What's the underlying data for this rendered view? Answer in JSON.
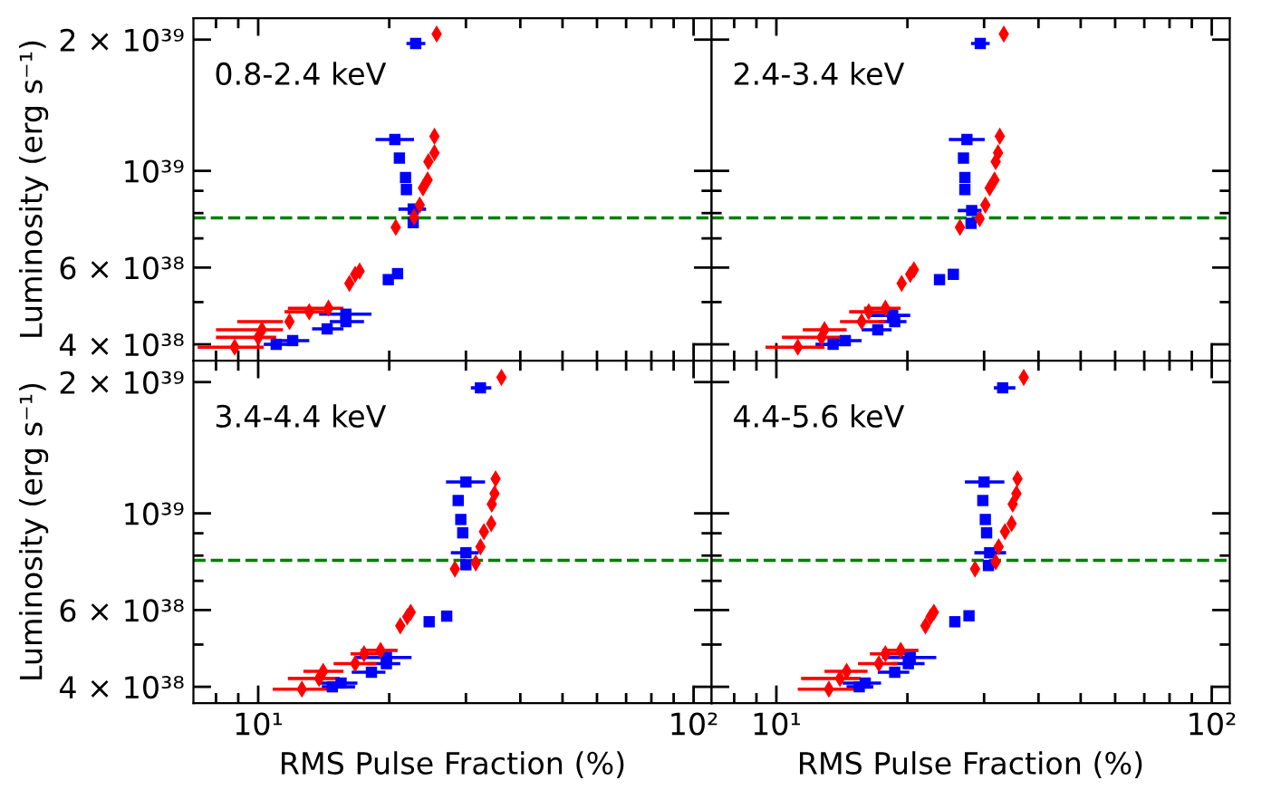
{
  "chart_data": [
    {
      "type": "scatter",
      "ylabel": "Luminosity (erg s⁻¹)",
      "annotations": [
        "0.8-2.4 keV"
      ],
      "log": "xy",
      "tick_labels": "y",
      "xlim": [
        7.1,
        110
      ],
      "ylim": [
        3.67e+38,
        2.24e+39
      ],
      "xticks": [
        {
          "value": 8,
          "label": null
        },
        {
          "value": 9,
          "label": null
        },
        {
          "value": 10,
          "label": null
        },
        {
          "value": 20,
          "label": null
        },
        {
          "value": 30,
          "label": null
        },
        {
          "value": 40,
          "label": null
        },
        {
          "value": 50,
          "label": null
        },
        {
          "value": 60,
          "label": null
        },
        {
          "value": 70,
          "label": null
        },
        {
          "value": 80,
          "label": null
        },
        {
          "value": 90,
          "label": null
        },
        {
          "value": 100,
          "label": null
        }
      ],
      "yticks": [
        {
          "value": 4e+38,
          "label": "4 × 10³⁸"
        },
        {
          "value": 5e+38,
          "label": null
        },
        {
          "value": 6e+38,
          "label": "6 × 10³⁸"
        },
        {
          "value": 7e+38,
          "label": null
        },
        {
          "value": 8e+38,
          "label": null
        },
        {
          "value": 9e+38,
          "label": null
        },
        {
          "value": 1e+39,
          "label": "10³⁹"
        },
        {
          "value": 2e+39,
          "label": "2 × 10³⁹"
        }
      ],
      "ref_lines": [
        {
          "axis": "y",
          "value": 7.8e+38,
          "color": "#008000",
          "line_style": "dashed"
        }
      ],
      "series": [
        {
          "color": "#0000ff",
          "marker": "square",
          "x": [
            23.0,
            20.6,
            21.1,
            21.8,
            21.9,
            22.7,
            22.7,
            20.9,
            19.9,
            15.9,
            15.9,
            14.4,
            12.0,
            11.0
          ],
          "values": [
            1.96e+39,
            1.18e+39,
            1.07e+39,
            9.65e+38,
            9.06e+38,
            8.17e+38,
            7.61e+38,
            5.81e+38,
            5.63e+38,
            4.69e+38,
            4.51e+38,
            4.34e+38,
            4.08e+38,
            4e+38
          ],
          "xerrors": [
            [
              21.9,
              24.2
            ],
            [
              18.6,
              22.8
            ],
            null,
            null,
            null,
            [
              21.0,
              24.3
            ],
            null,
            null,
            null,
            [
              13.8,
              18.2
            ],
            [
              14.6,
              17.5
            ],
            [
              13.3,
              15.7
            ],
            [
              11.2,
              13.1
            ],
            [
              10.3,
              11.9
            ]
          ]
        },
        {
          "color": "#ff0000",
          "marker": "diamond",
          "x": [
            25.7,
            25.4,
            25.4,
            24.6,
            24.5,
            23.9,
            23.5,
            22.8,
            20.7,
            17.1,
            16.7,
            16.2,
            14.5,
            13.1,
            11.8,
            10.2,
            10.0,
            8.83
          ],
          "values": [
            2.06e+39,
            1.2e+39,
            1.1e+39,
            1.05e+39,
            9.53e+38,
            9.14e+38,
            8.35e+38,
            7.84e+38,
            7.42e+38,
            5.89e+38,
            5.79e+38,
            5.52e+38,
            4.84e+38,
            4.75e+38,
            4.51e+38,
            4.32e+38,
            4.15e+38,
            3.94e+38
          ],
          "xerrors": [
            null,
            null,
            null,
            null,
            null,
            null,
            null,
            null,
            null,
            null,
            null,
            null,
            [
              11.7,
              15.7
            ],
            [
              11.5,
              14.5
            ],
            [
              8.95,
              11.4
            ],
            [
              8.0,
              11.4
            ],
            [
              8.0,
              11.0
            ],
            [
              7.26,
              10.3
            ]
          ]
        }
      ]
    },
    {
      "type": "scatter",
      "annotations": [
        "2.4-3.4 keV"
      ],
      "log": "xy",
      "tick_labels": false,
      "xlim": [
        7.1,
        110
      ],
      "ylim": [
        3.67e+38,
        2.24e+39
      ],
      "xticks": [
        {
          "value": 8,
          "label": null
        },
        {
          "value": 9,
          "label": null
        },
        {
          "value": 10,
          "label": null
        },
        {
          "value": 20,
          "label": null
        },
        {
          "value": 30,
          "label": null
        },
        {
          "value": 40,
          "label": null
        },
        {
          "value": 50,
          "label": null
        },
        {
          "value": 60,
          "label": null
        },
        {
          "value": 70,
          "label": null
        },
        {
          "value": 80,
          "label": null
        },
        {
          "value": 90,
          "label": null
        },
        {
          "value": 100,
          "label": null
        }
      ],
      "yticks": [
        {
          "value": 4e+38,
          "label": null
        },
        {
          "value": 5e+38,
          "label": null
        },
        {
          "value": 6e+38,
          "label": null
        },
        {
          "value": 7e+38,
          "label": null
        },
        {
          "value": 8e+38,
          "label": null
        },
        {
          "value": 9e+38,
          "label": null
        },
        {
          "value": 1e+39,
          "label": null
        },
        {
          "value": 2e+39,
          "label": null
        }
      ],
      "ref_lines": [
        {
          "axis": "y",
          "value": 7.8e+38,
          "color": "#008000",
          "line_style": "dashed"
        }
      ],
      "series": [
        {
          "color": "#0000ff",
          "marker": "square",
          "x": [
            29.4,
            27.4,
            26.9,
            27.1,
            27.1,
            28.1,
            28.0,
            25.5,
            23.7,
            18.5,
            18.7,
            17.1,
            14.4,
            13.5
          ],
          "values": [
            1.96e+39,
            1.18e+39,
            1.07e+39,
            9.65e+38,
            9.06e+38,
            8.11e+38,
            7.58e+38,
            5.79e+38,
            5.63e+38,
            4.66e+38,
            4.51e+38,
            4.32e+38,
            4.08e+38,
            4e+38
          ],
          "xerrors": [
            [
              28.0,
              30.9
            ],
            [
              24.9,
              30.1
            ],
            null,
            null,
            null,
            [
              26.1,
              29.6
            ],
            null,
            null,
            null,
            [
              16.2,
              20.3
            ],
            [
              17.2,
              19.9
            ],
            [
              15.7,
              18.4
            ],
            [
              13.3,
              15.7
            ],
            [
              12.3,
              14.5
            ]
          ]
        },
        {
          "color": "#ff0000",
          "marker": "diamond",
          "x": [
            33.3,
            32.6,
            32.3,
            31.9,
            31.7,
            30.9,
            30.2,
            29.3,
            26.4,
            20.7,
            20.3,
            19.4,
            17.8,
            16.3,
            15.7,
            12.9,
            12.7,
            11.2
          ],
          "values": [
            2.06e+39,
            1.2e+39,
            1.1e+39,
            1.05e+39,
            9.53e+38,
            9.14e+38,
            8.35e+38,
            7.77e+38,
            7.42e+38,
            5.93e+38,
            5.79e+38,
            5.52e+38,
            4.84e+38,
            4.75e+38,
            4.51e+38,
            4.32e+38,
            4.15e+38,
            3.94e+38
          ],
          "xerrors": [
            null,
            null,
            null,
            null,
            null,
            null,
            null,
            null,
            null,
            null,
            null,
            null,
            [
              15.9,
              19.3
            ],
            [
              14.7,
              17.8
            ],
            [
              14.0,
              17.8
            ],
            [
              11.5,
              14.5
            ],
            [
              10.3,
              14.5
            ],
            [
              9.44,
              12.9
            ]
          ]
        }
      ]
    },
    {
      "type": "scatter",
      "xlabel": "RMS Pulse Fraction (%)",
      "ylabel": "Luminosity (erg s⁻¹)",
      "annotations": [
        "3.4-4.4 keV"
      ],
      "log": "xy",
      "xlim": [
        7.1,
        110
      ],
      "ylim": [
        3.67e+38,
        2.24e+39
      ],
      "xticks": [
        {
          "value": 8,
          "label": null
        },
        {
          "value": 9,
          "label": null
        },
        {
          "value": 10,
          "label": "10¹"
        },
        {
          "value": 20,
          "label": null
        },
        {
          "value": 30,
          "label": null
        },
        {
          "value": 40,
          "label": null
        },
        {
          "value": 50,
          "label": null
        },
        {
          "value": 60,
          "label": null
        },
        {
          "value": 70,
          "label": null
        },
        {
          "value": 80,
          "label": null
        },
        {
          "value": 90,
          "label": null
        },
        {
          "value": 100,
          "label": "10²"
        }
      ],
      "yticks": [
        {
          "value": 4e+38,
          "label": "4 × 10³⁸"
        },
        {
          "value": 5e+38,
          "label": null
        },
        {
          "value": 6e+38,
          "label": "6 × 10³⁸"
        },
        {
          "value": 7e+38,
          "label": null
        },
        {
          "value": 8e+38,
          "label": null
        },
        {
          "value": 9e+38,
          "label": null
        },
        {
          "value": 1e+39,
          "label": "10³⁹"
        },
        {
          "value": 2e+39,
          "label": "2 × 10³⁹"
        }
      ],
      "ref_lines": [
        {
          "axis": "y",
          "value": 7.8e+38,
          "color": "#008000",
          "line_style": "dashed"
        }
      ],
      "series": [
        {
          "color": "#0000ff",
          "marker": "square",
          "x": [
            32.4,
            30.0,
            28.8,
            29.2,
            29.5,
            30.0,
            30.0,
            27.1,
            24.7,
            19.7,
            19.7,
            18.2,
            15.5,
            14.8
          ],
          "values": [
            1.94e+39,
            1.18e+39,
            1.07e+39,
            9.68e+38,
            9.02e+38,
            8.12e+38,
            7.62e+38,
            5.81e+38,
            5.64e+38,
            4.67e+38,
            4.52e+38,
            4.32e+38,
            4.08e+38,
            4e+38
          ],
          "xerrors": [
            [
              30.8,
              34.3
            ],
            [
              27.0,
              33.2
            ],
            null,
            null,
            null,
            [
              27.7,
              32.1
            ],
            null,
            null,
            null,
            [
              16.7,
              22.5
            ],
            [
              17.8,
              21.2
            ],
            [
              16.4,
              19.6
            ],
            [
              13.8,
              16.9
            ],
            [
              14.0,
              16.7
            ]
          ]
        },
        {
          "color": "#ff0000",
          "marker": "diamond",
          "x": [
            36.2,
            35.1,
            34.9,
            34.4,
            34.3,
            33.0,
            32.4,
            31.6,
            28.3,
            22.4,
            22.0,
            21.2,
            19.1,
            17.5,
            16.7,
            14.1,
            13.8,
            12.6
          ],
          "values": [
            2.05e+39,
            1.2e+39,
            1.11e+39,
            1.05e+39,
            9.47e+38,
            9.08e+38,
            8.38e+38,
            7.69e+38,
            7.45e+38,
            5.93e+38,
            5.79e+38,
            5.52e+38,
            4.85e+38,
            4.76e+38,
            4.52e+38,
            4.34e+38,
            4.18e+38,
            3.95e+38
          ],
          "xerrors": [
            null,
            null,
            null,
            null,
            null,
            null,
            null,
            null,
            null,
            null,
            null,
            null,
            [
              17.2,
              20.9
            ],
            [
              16.3,
              19.6
            ],
            [
              14.9,
              18.7
            ],
            [
              12.7,
              15.7
            ],
            [
              11.7,
              15.4
            ],
            [
              10.8,
              14.7
            ]
          ]
        }
      ]
    },
    {
      "type": "scatter",
      "xlabel": "RMS Pulse Fraction (%)",
      "annotations": [
        "4.4-5.6 keV"
      ],
      "log": "xy",
      "tick_labels": "x",
      "xlim": [
        7.1,
        110
      ],
      "ylim": [
        3.67e+38,
        2.24e+39
      ],
      "xticks": [
        {
          "value": 8,
          "label": null
        },
        {
          "value": 9,
          "label": null
        },
        {
          "value": 10,
          "label": "10¹"
        },
        {
          "value": 20,
          "label": null
        },
        {
          "value": 30,
          "label": null
        },
        {
          "value": 40,
          "label": null
        },
        {
          "value": 50,
          "label": null
        },
        {
          "value": 60,
          "label": null
        },
        {
          "value": 70,
          "label": null
        },
        {
          "value": 80,
          "label": null
        },
        {
          "value": 90,
          "label": null
        },
        {
          "value": 100,
          "label": "10²"
        }
      ],
      "yticks": [
        {
          "value": 4e+38,
          "label": null
        },
        {
          "value": 5e+38,
          "label": null
        },
        {
          "value": 6e+38,
          "label": null
        },
        {
          "value": 7e+38,
          "label": null
        },
        {
          "value": 8e+38,
          "label": null
        },
        {
          "value": 9e+38,
          "label": null
        },
        {
          "value": 1e+39,
          "label": null
        },
        {
          "value": 2e+39,
          "label": null
        }
      ],
      "ref_lines": [
        {
          "axis": "y",
          "value": 7.8e+38,
          "color": "#008000",
          "line_style": "dashed"
        }
      ],
      "series": [
        {
          "color": "#0000ff",
          "marker": "square",
          "x": [
            33.1,
            30.0,
            29.8,
            30.2,
            30.4,
            30.9,
            30.7,
            27.7,
            25.7,
            20.3,
            20.1,
            18.7,
            16.0,
            15.5
          ],
          "values": [
            1.94e+39,
            1.18e+39,
            1.07e+39,
            9.68e+38,
            9.02e+38,
            8.12e+38,
            7.59e+38,
            5.82e+38,
            5.64e+38,
            4.67e+38,
            4.52e+38,
            4.32e+38,
            4.08e+38,
            4e+38
          ],
          "xerrors": [
            [
              31.6,
              35.4
            ],
            [
              27.1,
              33.4
            ],
            null,
            null,
            null,
            [
              28.5,
              33.7
            ],
            null,
            null,
            null,
            [
              17.5,
              23.3
            ],
            [
              18.4,
              21.9
            ],
            [
              17.1,
              20.2
            ],
            [
              14.2,
              17.4
            ],
            [
              14.5,
              16.7
            ]
          ]
        },
        {
          "color": "#ff0000",
          "marker": "diamond",
          "x": [
            37.0,
            35.8,
            35.6,
            34.9,
            34.7,
            33.5,
            32.4,
            31.9,
            28.6,
            23.0,
            22.6,
            22.0,
            19.3,
            17.8,
            17.2,
            14.5,
            14.0,
            13.2
          ],
          "values": [
            2.05e+39,
            1.2e+39,
            1.11e+39,
            1.05e+39,
            9.47e+38,
            9.08e+38,
            8.38e+38,
            7.74e+38,
            7.45e+38,
            5.93e+38,
            5.79e+38,
            5.52e+38,
            4.85e+38,
            4.76e+38,
            4.52e+38,
            4.34e+38,
            4.18e+38,
            3.95e+38
          ],
          "xerrors": [
            null,
            null,
            null,
            null,
            null,
            null,
            null,
            null,
            null,
            null,
            null,
            null,
            [
              17.5,
              21.2
            ],
            [
              16.4,
              19.9
            ],
            [
              15.4,
              19.0
            ],
            [
              12.9,
              16.2
            ],
            [
              11.4,
              15.6
            ],
            [
              11.2,
              15.1
            ]
          ]
        }
      ]
    }
  ]
}
